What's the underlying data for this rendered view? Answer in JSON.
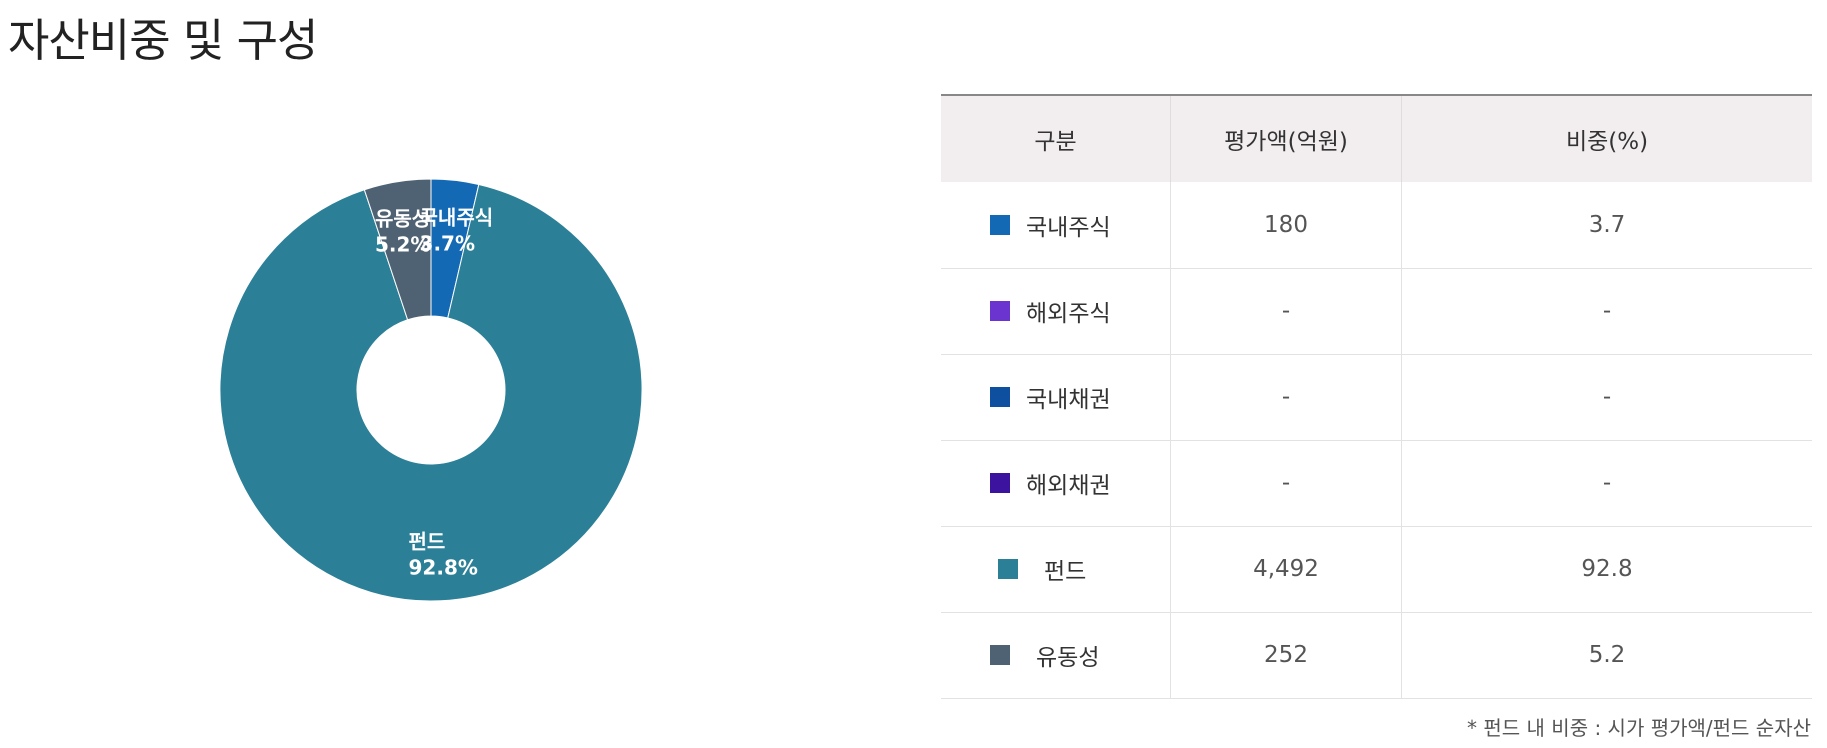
{
  "page": {
    "title": "자산비중 및 구성"
  },
  "chart_data": {
    "type": "pie",
    "donut": true,
    "slices": [
      {
        "label": "국내주식",
        "value": 3.7,
        "display": "3.7%",
        "color": "#1369b4"
      },
      {
        "label": "펀드",
        "value": 92.8,
        "display": "92.8%",
        "color": "#2b7f97"
      },
      {
        "label": "유동성",
        "value": 5.2,
        "display": "5.2%",
        "color": "#4f6273"
      }
    ],
    "legend": "none"
  },
  "table": {
    "headers": [
      "구분",
      "평가액(억원)",
      "비중(%)"
    ],
    "rows": [
      {
        "label": "국내주식",
        "color": "#1369b4",
        "amount": "180",
        "weight": "3.7"
      },
      {
        "label": "해외주식",
        "color": "#6b34d0",
        "amount": "-",
        "weight": "-"
      },
      {
        "label": "국내채권",
        "color": "#0e4fa0",
        "amount": "-",
        "weight": "-"
      },
      {
        "label": "해외채권",
        "color": "#3c139e",
        "amount": "-",
        "weight": "-"
      },
      {
        "label": "펀드",
        "color": "#2b7f97",
        "amount": "4,492",
        "weight": "92.8"
      },
      {
        "label": "유동성",
        "color": "#4f6273",
        "amount": "252",
        "weight": "5.2"
      }
    ]
  },
  "footnote": "* 펀드 내 비중 : 시가 평가액/펀드 순자산"
}
